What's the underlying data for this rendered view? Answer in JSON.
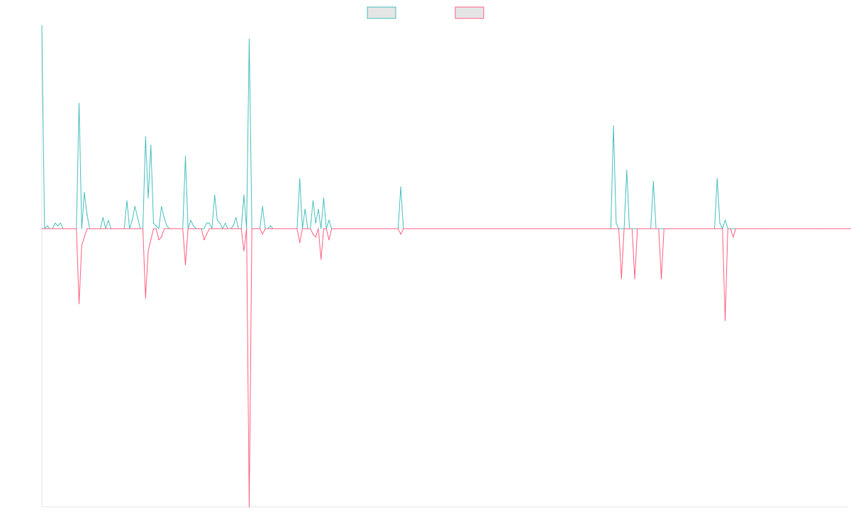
{
  "chart_data": {
    "type": "line",
    "title": "",
    "xlabel": "",
    "ylabel": "",
    "grid": false,
    "legend": "top-center",
    "ylim": [
      -1,
      0.73
    ],
    "series": [
      {
        "name": "",
        "color": "#4bc0c0",
        "fill": "#e5e5e5",
        "values": [
          0.73,
          0.0,
          0.01,
          0.0,
          0.0,
          0.02,
          0.01,
          0.02,
          0.0,
          0.0,
          0.0,
          0.0,
          0.0,
          0.0,
          0.45,
          0.0,
          0.13,
          0.05,
          0.0,
          0.0,
          0.0,
          0.0,
          0.0,
          0.04,
          0.0,
          0.03,
          0.0,
          0.0,
          0.0,
          0.0,
          0.0,
          0.0,
          0.1,
          0.0,
          0.03,
          0.08,
          0.04,
          0.0,
          0.0,
          0.33,
          0.11,
          0.3,
          0.02,
          0.01,
          0.0,
          0.08,
          0.04,
          0.01,
          0.0,
          0.0,
          0.0,
          0.0,
          0.0,
          0.0,
          0.26,
          0.0,
          0.03,
          0.01,
          0.0,
          0.0,
          0.0,
          0.0,
          0.02,
          0.02,
          0.0,
          0.12,
          0.03,
          0.02,
          0.0,
          0.02,
          0.0,
          0.0,
          0.01,
          0.04,
          0.0,
          0.0,
          0.12,
          0.0,
          0.68,
          0.0,
          0.0,
          0.0,
          0.0,
          0.08,
          0.0,
          0.0,
          0.01,
          0.0,
          0.0,
          0.0,
          0.0,
          0.0,
          0.0,
          0.0,
          0.0,
          0.0,
          0.0,
          0.18,
          0.0,
          0.07,
          0.0,
          0.0,
          0.1,
          0.02,
          0.07,
          0.0,
          0.11,
          0.0,
          0.03,
          0.0,
          0.0,
          0.0,
          0.0,
          0.0,
          0.0,
          0.0,
          0.0,
          0.0,
          0.0,
          0.0,
          0.0,
          0.0,
          0.0,
          0.0,
          0.0,
          0.0,
          0.0,
          0.0,
          0.0,
          0.0,
          0.0,
          0.0,
          0.0,
          0.0,
          0.0,
          0.15,
          0.0,
          0.0,
          0.0,
          0.0,
          0.0,
          0.0,
          0.0,
          0.0,
          0.0,
          0.0,
          0.0,
          0.0,
          0.0,
          0.0,
          0.0,
          0.0,
          0.0,
          0.0,
          0.0,
          0.0,
          0.0,
          0.0,
          0.0,
          0.0,
          0.0,
          0.0,
          0.0,
          0.0,
          0.0,
          0.0,
          0.0,
          0.0,
          0.0,
          0.0,
          0.0,
          0.0,
          0.0,
          0.0,
          0.0,
          0.0,
          0.0,
          0.0,
          0.0,
          0.0,
          0.0,
          0.0,
          0.0,
          0.0,
          0.0,
          0.0,
          0.0,
          0.0,
          0.0,
          0.0,
          0.0,
          0.0,
          0.0,
          0.0,
          0.0,
          0.0,
          0.0,
          0.0,
          0.0,
          0.0,
          0.0,
          0.0,
          0.0,
          0.0,
          0.0,
          0.0,
          0.0,
          0.0,
          0.0,
          0.0,
          0.0,
          0.0,
          0.0,
          0.0,
          0.0,
          0.37,
          0.02,
          0.0,
          0.0,
          0.0,
          0.21,
          0.0,
          0.0,
          0.0,
          0.0,
          0.0,
          0.0,
          0.0,
          0.0,
          0.0,
          0.17,
          0.0,
          0.0,
          0.0,
          0.0,
          0.0,
          0.0,
          0.0,
          0.0,
          0.0,
          0.0,
          0.0,
          0.0,
          0.0,
          0.0,
          0.0,
          0.0,
          0.0,
          0.0,
          0.0,
          0.0,
          0.0,
          0.0,
          0.0,
          0.18,
          0.02,
          0.0,
          0.03,
          0.0,
          0.0,
          0.0,
          0.0,
          0.0,
          0.0,
          0.0,
          0.0,
          0.0,
          0.0,
          0.0,
          0.0,
          0.0,
          0.0,
          0.0,
          0.0,
          0.0,
          0.0,
          0.0,
          0.0,
          0.0,
          0.0,
          0.0,
          0.0,
          0.0,
          0.0,
          0.0,
          0.0,
          0.0,
          0.0,
          0.0,
          0.0,
          0.0,
          0.0,
          0.0,
          0.0,
          0.0,
          0.0,
          0.0,
          0.0,
          0.0,
          0.0,
          0.0,
          0.0,
          0.0,
          0.0
        ]
      },
      {
        "name": "",
        "color": "#ff6384",
        "fill": "#e5e5e5",
        "values": [
          0.0,
          0.0,
          0.0,
          0.0,
          0.0,
          0.0,
          0.0,
          0.0,
          0.0,
          0.0,
          0.0,
          0.0,
          0.0,
          0.0,
          -0.27,
          -0.06,
          -0.03,
          0.0,
          0.0,
          0.0,
          0.0,
          0.0,
          0.0,
          0.0,
          0.0,
          0.0,
          0.0,
          0.0,
          0.0,
          0.0,
          0.0,
          0.0,
          0.0,
          0.0,
          0.0,
          0.0,
          0.0,
          0.0,
          0.0,
          -0.25,
          -0.08,
          -0.04,
          0.0,
          0.0,
          -0.04,
          -0.03,
          0.0,
          0.0,
          0.0,
          0.0,
          0.0,
          0.0,
          0.0,
          0.0,
          -0.13,
          0.0,
          0.0,
          0.0,
          0.0,
          0.0,
          0.0,
          -0.04,
          -0.02,
          0.0,
          0.0,
          0.0,
          0.0,
          0.0,
          0.0,
          0.0,
          0.0,
          0.0,
          0.0,
          0.0,
          0.0,
          0.0,
          -0.08,
          0.0,
          -1.0,
          0.0,
          0.0,
          0.0,
          0.0,
          -0.02,
          0.0,
          0.0,
          0.0,
          0.0,
          0.0,
          0.0,
          0.0,
          0.0,
          0.0,
          0.0,
          0.0,
          0.0,
          0.0,
          -0.05,
          0.0,
          0.0,
          0.0,
          0.0,
          -0.02,
          -0.03,
          0.0,
          -0.11,
          0.0,
          0.0,
          -0.04,
          0.0,
          0.0,
          0.0,
          0.0,
          0.0,
          0.0,
          0.0,
          0.0,
          0.0,
          0.0,
          0.0,
          0.0,
          0.0,
          0.0,
          0.0,
          0.0,
          0.0,
          0.0,
          0.0,
          0.0,
          0.0,
          0.0,
          0.0,
          0.0,
          0.0,
          0.0,
          -0.02,
          0.0,
          0.0,
          0.0,
          0.0,
          0.0,
          0.0,
          0.0,
          0.0,
          0.0,
          0.0,
          0.0,
          0.0,
          0.0,
          0.0,
          0.0,
          0.0,
          0.0,
          0.0,
          0.0,
          0.0,
          0.0,
          0.0,
          0.0,
          0.0,
          0.0,
          0.0,
          0.0,
          0.0,
          0.0,
          0.0,
          0.0,
          0.0,
          0.0,
          0.0,
          0.0,
          0.0,
          0.0,
          0.0,
          0.0,
          0.0,
          0.0,
          0.0,
          0.0,
          0.0,
          0.0,
          0.0,
          0.0,
          0.0,
          0.0,
          0.0,
          0.0,
          0.0,
          0.0,
          0.0,
          0.0,
          0.0,
          0.0,
          0.0,
          0.0,
          0.0,
          0.0,
          0.0,
          0.0,
          0.0,
          0.0,
          0.0,
          0.0,
          0.0,
          0.0,
          0.0,
          0.0,
          0.0,
          0.0,
          0.0,
          0.0,
          0.0,
          0.0,
          0.0,
          0.0,
          0.0,
          0.0,
          0.0,
          -0.18,
          0.0,
          0.0,
          0.0,
          0.0,
          -0.18,
          0.0,
          0.0,
          0.0,
          0.0,
          0.0,
          0.0,
          0.0,
          0.0,
          0.0,
          -0.18,
          0.0,
          0.0,
          0.0,
          0.0,
          0.0,
          0.0,
          0.0,
          0.0,
          0.0,
          0.0,
          0.0,
          0.0,
          0.0,
          0.0,
          0.0,
          0.0,
          0.0,
          0.0,
          0.0,
          0.0,
          0.0,
          0.0,
          0.0,
          -0.33,
          0.0,
          0.0,
          -0.03,
          0.0,
          0.0,
          0.0,
          0.0,
          0.0,
          0.0,
          0.0,
          0.0,
          0.0,
          0.0,
          0.0,
          0.0,
          0.0,
          0.0,
          0.0,
          0.0,
          0.0,
          0.0,
          0.0,
          0.0,
          0.0,
          0.0,
          0.0,
          0.0,
          0.0,
          0.0,
          0.0,
          0.0,
          0.0,
          0.0,
          0.0,
          0.0,
          0.0,
          0.0,
          0.0,
          0.0,
          0.0,
          0.0,
          0.0,
          0.0,
          0.0,
          0.0,
          0.0,
          0.0,
          0.0,
          0.0
        ]
      }
    ]
  }
}
